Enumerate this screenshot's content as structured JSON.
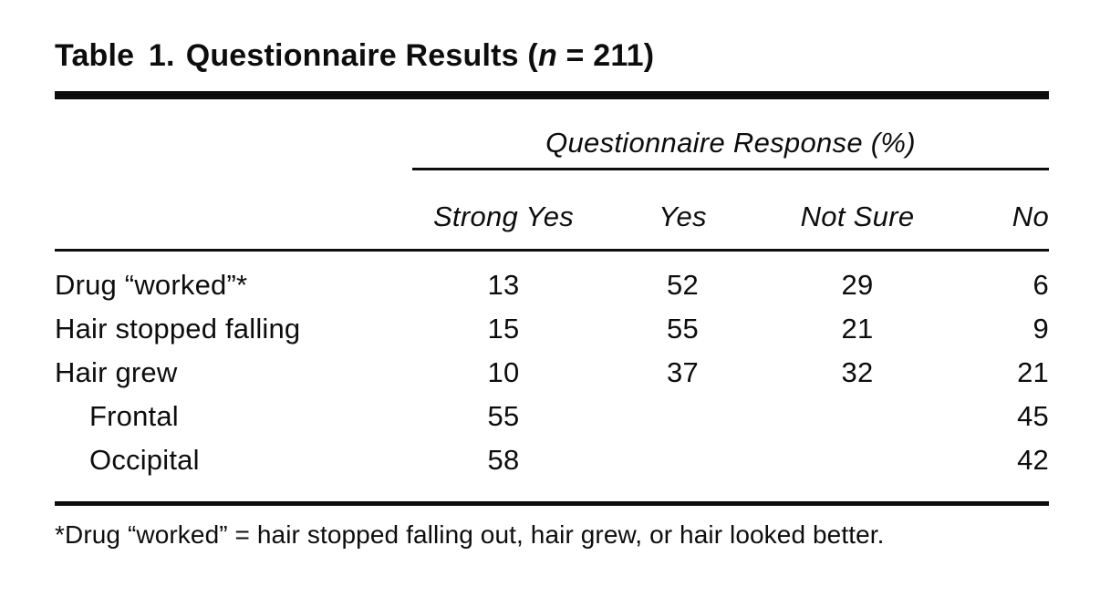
{
  "title": {
    "prefix": "Table 1.",
    "main": "Questionnaire Results (",
    "variable": "n",
    "suffix": " = 211)"
  },
  "table": {
    "spanner": "Questionnaire Response (%)",
    "columns": [
      "Strong Yes",
      "Yes",
      "Not Sure",
      "No"
    ],
    "rows": [
      {
        "label": "Drug “worked”*",
        "indent": false,
        "values": [
          "13",
          "52",
          "29",
          "6"
        ]
      },
      {
        "label": "Hair stopped falling",
        "indent": false,
        "values": [
          "15",
          "55",
          "21",
          "9"
        ]
      },
      {
        "label": "Hair grew",
        "indent": false,
        "values": [
          "10",
          "37",
          "32",
          "21"
        ]
      },
      {
        "label": "Frontal",
        "indent": true,
        "values": [
          "55",
          "",
          "",
          "45"
        ]
      },
      {
        "label": "Occipital",
        "indent": true,
        "values": [
          "58",
          "",
          "",
          "42"
        ]
      }
    ],
    "footnote": "*Drug “worked” = hair stopped falling out, hair grew, or hair looked better."
  },
  "colors": {
    "text": "#0d0d0d",
    "background": "#ffffff"
  }
}
